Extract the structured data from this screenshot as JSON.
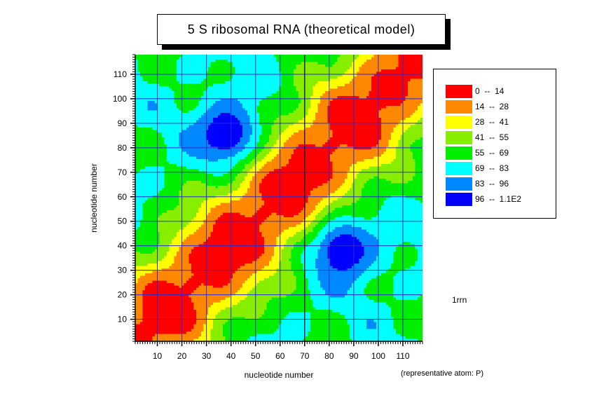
{
  "title": "5 S ribosomal RNA (theoretical model)",
  "pdb_id": "1rrn",
  "footnote": "(representative atom: P)",
  "chart_data": {
    "type": "heatmap",
    "title": "5 S ribosomal RNA (theoretical model)",
    "xlabel": "nucleotide number",
    "ylabel": "nucleotide number",
    "xlim": [
      1,
      118
    ],
    "ylim": [
      1,
      118
    ],
    "xticks": [
      10,
      20,
      30,
      40,
      50,
      60,
      70,
      80,
      90,
      100,
      110
    ],
    "yticks": [
      10,
      20,
      30,
      40,
      50,
      60,
      70,
      80,
      90,
      100,
      110
    ],
    "grid": true,
    "grid_color": "#2a2ad0",
    "symmetric": true,
    "diagonal_value": 0,
    "domain_boundary": 70,
    "blob_centers": [
      [
        38,
        86
      ],
      [
        86,
        38
      ]
    ],
    "blob_peak_value": 110,
    "levels": [
      {
        "label": "0  --  14",
        "min": 0,
        "max": 14,
        "color": "#ff0000"
      },
      {
        "label": "14  --  28",
        "min": 14,
        "max": 28,
        "color": "#ff8800"
      },
      {
        "label": "28  --  41",
        "min": 28,
        "max": 41,
        "color": "#ffff00"
      },
      {
        "label": "41  --  55",
        "min": 41,
        "max": 55,
        "color": "#88ee00"
      },
      {
        "label": "55  --  69",
        "min": 55,
        "max": 69,
        "color": "#00ee00"
      },
      {
        "label": "69  --  83",
        "min": 69,
        "max": 83,
        "color": "#00ffff"
      },
      {
        "label": "83  --  96",
        "min": 83,
        "max": 96,
        "color": "#0088ff"
      },
      {
        "label": "96  --  1.1E2",
        "min": 96,
        "max": 110,
        "color": "#0000ff"
      }
    ]
  }
}
